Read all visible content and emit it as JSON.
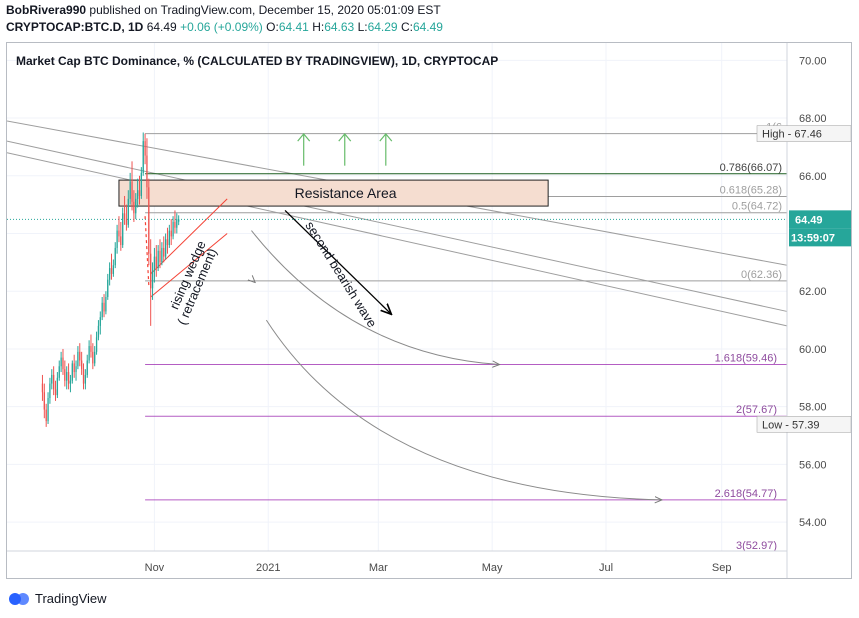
{
  "header": {
    "author": "BobRivera990",
    "published": "published on TradingView.com, December 15, 2020 05:01:09 EST",
    "symbol": "CRYPTOCAP:BTC.D, 1D",
    "last": "64.49",
    "change": "+0.06 (+0.09%)",
    "o_label": "O:",
    "o": "64.41",
    "h_label": "H:",
    "h": "64.63",
    "l_label": "L:",
    "l": "64.29",
    "c_label": "C:",
    "c": "64.49"
  },
  "footer": {
    "brand": "TradingView"
  },
  "colors": {
    "up": "#26a69a",
    "down": "#ef5350",
    "fib": "#7f7f7f",
    "fib_ext": "#9c27b0",
    "wedge": "#f44336",
    "resistance_fill": "#f5ddd0",
    "target_arrow": "#66bb6a"
  },
  "chart_data": {
    "type": "candlestick",
    "title": "Market Cap BTC Dominance, % (CALCULATED BY TRADINGVIEW), 1D, CRYPTOCAP",
    "ylim": [
      53.0,
      70.6
    ],
    "yticks": [
      "70.00",
      "68.00",
      "66.00",
      "64.00",
      "62.00",
      "60.00",
      "58.00",
      "56.00",
      "54.00"
    ],
    "ytick_values": [
      70,
      68,
      66,
      64,
      62,
      60,
      58,
      56,
      54
    ],
    "xticks": [
      "Nov",
      "2021",
      "Mar",
      "May",
      "Jul",
      "Sep"
    ],
    "xtick_dates": [
      "2020-11-01",
      "2021-01-01",
      "2021-03-01",
      "2021-05-01",
      "2021-07-01",
      "2021-09-01"
    ],
    "xlim": [
      "2020-08-14",
      "2021-10-06"
    ],
    "candles": [
      [
        "2020-09-02",
        58.8,
        59.1,
        58.2,
        58.5
      ],
      [
        "2020-09-03",
        58.5,
        58.8,
        57.6,
        57.9
      ],
      [
        "2020-09-04",
        57.9,
        58.1,
        57.3,
        57.5
      ],
      [
        "2020-09-05",
        57.5,
        58.5,
        57.4,
        58.3
      ],
      [
        "2020-09-06",
        58.3,
        59.0,
        58.1,
        58.8
      ],
      [
        "2020-09-07",
        58.8,
        59.3,
        58.6,
        59.1
      ],
      [
        "2020-09-08",
        59.1,
        59.4,
        58.4,
        58.6
      ],
      [
        "2020-09-09",
        58.6,
        58.9,
        58.2,
        58.4
      ],
      [
        "2020-09-10",
        58.4,
        59.2,
        58.3,
        59.0
      ],
      [
        "2020-09-11",
        59.0,
        59.6,
        58.9,
        59.4
      ],
      [
        "2020-09-12",
        59.4,
        59.9,
        59.2,
        59.7
      ],
      [
        "2020-09-13",
        59.7,
        60.0,
        59.1,
        59.3
      ],
      [
        "2020-09-14",
        59.3,
        59.6,
        58.7,
        58.9
      ],
      [
        "2020-09-15",
        58.9,
        59.4,
        58.6,
        59.2
      ],
      [
        "2020-09-16",
        59.2,
        59.5,
        58.6,
        58.8
      ],
      [
        "2020-09-17",
        58.8,
        59.1,
        58.5,
        58.9
      ],
      [
        "2020-09-18",
        58.9,
        59.6,
        58.8,
        59.5
      ],
      [
        "2020-09-19",
        59.5,
        59.8,
        59.0,
        59.2
      ],
      [
        "2020-09-20",
        59.2,
        59.6,
        58.9,
        59.4
      ],
      [
        "2020-09-21",
        59.4,
        60.1,
        59.3,
        59.9
      ],
      [
        "2020-09-22",
        59.9,
        60.2,
        59.4,
        59.6
      ],
      [
        "2020-09-23",
        59.6,
        59.9,
        59.1,
        59.3
      ],
      [
        "2020-09-24",
        59.3,
        59.5,
        58.6,
        58.8
      ],
      [
        "2020-09-25",
        58.8,
        59.3,
        58.6,
        59.1
      ],
      [
        "2020-09-26",
        59.1,
        59.8,
        59.0,
        59.6
      ],
      [
        "2020-09-27",
        59.6,
        60.3,
        59.5,
        60.1
      ],
      [
        "2020-09-28",
        60.1,
        60.5,
        59.7,
        59.9
      ],
      [
        "2020-09-29",
        59.9,
        60.2,
        59.3,
        59.5
      ],
      [
        "2020-09-30",
        59.5,
        60.1,
        59.4,
        59.9
      ],
      [
        "2020-10-01",
        59.9,
        60.6,
        59.8,
        60.4
      ],
      [
        "2020-10-02",
        60.4,
        61.0,
        60.3,
        60.8
      ],
      [
        "2020-10-03",
        60.8,
        61.3,
        60.5,
        61.1
      ],
      [
        "2020-10-04",
        61.1,
        61.8,
        61.0,
        61.6
      ],
      [
        "2020-10-05",
        61.6,
        61.9,
        61.1,
        61.3
      ],
      [
        "2020-10-06",
        61.3,
        62.0,
        61.2,
        61.8
      ],
      [
        "2020-10-07",
        61.8,
        62.6,
        61.7,
        62.4
      ],
      [
        "2020-10-08",
        62.4,
        63.0,
        62.2,
        62.8
      ],
      [
        "2020-10-09",
        62.8,
        63.3,
        62.4,
        62.6
      ],
      [
        "2020-10-10",
        62.6,
        63.1,
        62.5,
        62.9
      ],
      [
        "2020-10-11",
        62.9,
        63.7,
        62.8,
        63.5
      ],
      [
        "2020-10-12",
        63.5,
        64.3,
        63.3,
        64.1
      ],
      [
        "2020-10-13",
        64.1,
        64.6,
        63.7,
        63.9
      ],
      [
        "2020-10-14",
        63.9,
        64.4,
        63.4,
        63.6
      ],
      [
        "2020-10-15",
        63.6,
        64.9,
        63.5,
        64.7
      ],
      [
        "2020-10-16",
        64.7,
        65.3,
        64.3,
        64.5
      ],
      [
        "2020-10-17",
        64.5,
        65.0,
        64.1,
        64.3
      ],
      [
        "2020-10-18",
        64.3,
        65.5,
        64.2,
        65.2
      ],
      [
        "2020-10-19",
        65.2,
        66.1,
        65.0,
        65.8
      ],
      [
        "2020-10-20",
        65.8,
        66.5,
        64.8,
        65.1
      ],
      [
        "2020-10-21",
        65.1,
        65.5,
        64.4,
        64.7
      ],
      [
        "2020-10-22",
        64.7,
        65.4,
        64.5,
        65.2
      ],
      [
        "2020-10-23",
        65.2,
        65.9,
        64.9,
        65.5
      ],
      [
        "2020-10-24",
        65.5,
        66.0,
        65.0,
        65.3
      ],
      [
        "2020-10-25",
        65.3,
        66.3,
        65.2,
        66.1
      ],
      [
        "2020-10-26",
        66.1,
        67.5,
        66.0,
        67.2
      ],
      [
        "2020-10-27",
        67.2,
        67.46,
        66.4,
        66.7
      ],
      [
        "2020-10-28",
        66.7,
        67.3,
        65.2,
        65.6
      ],
      [
        "2020-10-29",
        65.6,
        65.9,
        62.9,
        63.3
      ],
      [
        "2020-10-30",
        63.3,
        63.8,
        60.8,
        62.1
      ],
      [
        "2020-10-31",
        62.1,
        63.0,
        61.7,
        62.7
      ],
      [
        "2020-11-01",
        62.7,
        63.5,
        62.3,
        63.2
      ],
      [
        "2020-11-02",
        63.2,
        63.6,
        62.5,
        62.8
      ],
      [
        "2020-11-03",
        62.8,
        63.6,
        62.7,
        63.4
      ],
      [
        "2020-11-04",
        63.4,
        63.8,
        62.8,
        63.0
      ],
      [
        "2020-11-05",
        63.0,
        63.7,
        62.9,
        63.5
      ],
      [
        "2020-11-06",
        63.5,
        63.9,
        63.0,
        63.2
      ],
      [
        "2020-11-07",
        63.2,
        64.0,
        63.1,
        63.8
      ],
      [
        "2020-11-08",
        63.8,
        64.2,
        63.3,
        63.6
      ],
      [
        "2020-11-09",
        63.6,
        64.3,
        63.5,
        64.1
      ],
      [
        "2020-11-10",
        64.1,
        64.5,
        63.6,
        63.9
      ],
      [
        "2020-11-11",
        63.9,
        64.6,
        63.8,
        64.4
      ],
      [
        "2020-11-12",
        64.4,
        64.8,
        64.0,
        64.2
      ],
      [
        "2020-11-13",
        64.2,
        64.7,
        64.0,
        64.5
      ],
      [
        "2020-11-14",
        64.41,
        64.63,
        64.29,
        64.49
      ]
    ],
    "fib_levels": [
      {
        "label": "1(6",
        "value": 67.46
      },
      {
        "label": "0.786(66.07)",
        "value": 66.07
      },
      {
        "label": "0.618(65.28)",
        "value": 65.28
      },
      {
        "label": "0.5(64.72)",
        "value": 64.72
      },
      {
        "label": "0(62.36)",
        "value": 62.36
      }
    ],
    "fib_extensions": [
      {
        "label": "1.618(59.46)",
        "value": 59.46
      },
      {
        "label": "2(57.67)",
        "value": 57.67
      },
      {
        "label": "2.618(54.77)",
        "value": 54.77
      },
      {
        "label": "3(52.97)",
        "value": 52.97
      }
    ],
    "high": {
      "label": "High",
      "value": "67.46"
    },
    "low": {
      "label": "Low",
      "value": "57.39"
    },
    "last_price": {
      "value": "64.49",
      "countdown": "13:59:07"
    },
    "annotations": {
      "resistance": "Resistance Area",
      "wedge_line1": "rising wedge",
      "wedge_line2": "( retracement)",
      "bearish": "second bearish wave"
    }
  }
}
